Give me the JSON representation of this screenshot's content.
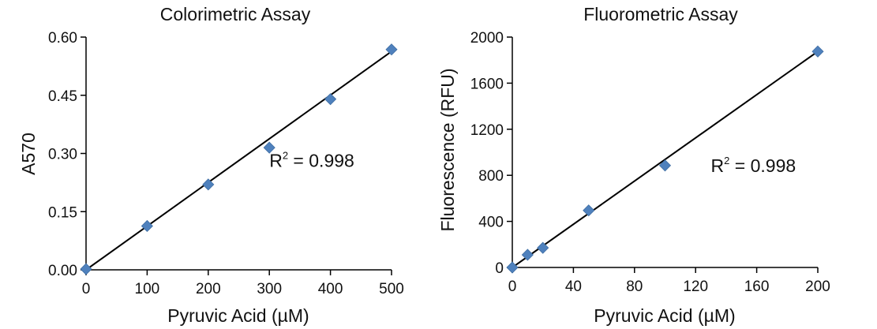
{
  "chart_data": [
    {
      "type": "scatter",
      "title": "Colorimetric Assay",
      "xlabel": "Pyruvic Acid (µM)",
      "ylabel": "A570",
      "xlim": [
        0,
        500
      ],
      "ylim": [
        0,
        0.6
      ],
      "x_ticks": [
        "0",
        "100",
        "200",
        "300",
        "400",
        "500"
      ],
      "y_ticks": [
        "0.00",
        "0.15",
        "0.30",
        "0.45",
        "0.60"
      ],
      "x_tick_values": [
        0,
        100,
        200,
        300,
        400,
        500
      ],
      "y_tick_values": [
        0,
        0.15,
        0.3,
        0.45,
        0.6
      ],
      "grid": false,
      "marker_color": "#4F81BD",
      "line_color": "#000000",
      "x": [
        0,
        100,
        200,
        300,
        400,
        500
      ],
      "y": [
        0.002,
        0.113,
        0.22,
        0.315,
        0.44,
        0.568
      ],
      "trendline": {
        "x": [
          0,
          500
        ],
        "y": [
          0,
          0.563
        ]
      },
      "annotation": {
        "prefix": "R",
        "sup": "2",
        "suffix": " = 0.998",
        "at": [
          300,
          0.265
        ]
      }
    },
    {
      "type": "scatter",
      "title": "Fluorometric Assay",
      "xlabel": "Pyruvic Acid (µM)",
      "ylabel": "Fluorescence (RFU)",
      "xlim": [
        0,
        200
      ],
      "ylim": [
        0,
        2000
      ],
      "x_ticks": [
        "0",
        "40",
        "80",
        "120",
        "160",
        "200"
      ],
      "y_ticks": [
        "0",
        "400",
        "800",
        "1200",
        "1600",
        "2000"
      ],
      "x_tick_values": [
        0,
        40,
        80,
        120,
        160,
        200
      ],
      "y_tick_values": [
        0,
        400,
        800,
        1200,
        1600,
        2000
      ],
      "grid": false,
      "marker_color": "#4F81BD",
      "line_color": "#000000",
      "x": [
        0,
        10,
        20,
        50,
        100,
        200
      ],
      "y": [
        0,
        110,
        170,
        495,
        885,
        1875
      ],
      "trendline": {
        "x": [
          0,
          200
        ],
        "y": [
          0,
          1875
        ]
      },
      "annotation": {
        "prefix": "R",
        "sup": "2",
        "suffix": " = 0.998",
        "at": [
          130,
          830
        ]
      }
    }
  ]
}
